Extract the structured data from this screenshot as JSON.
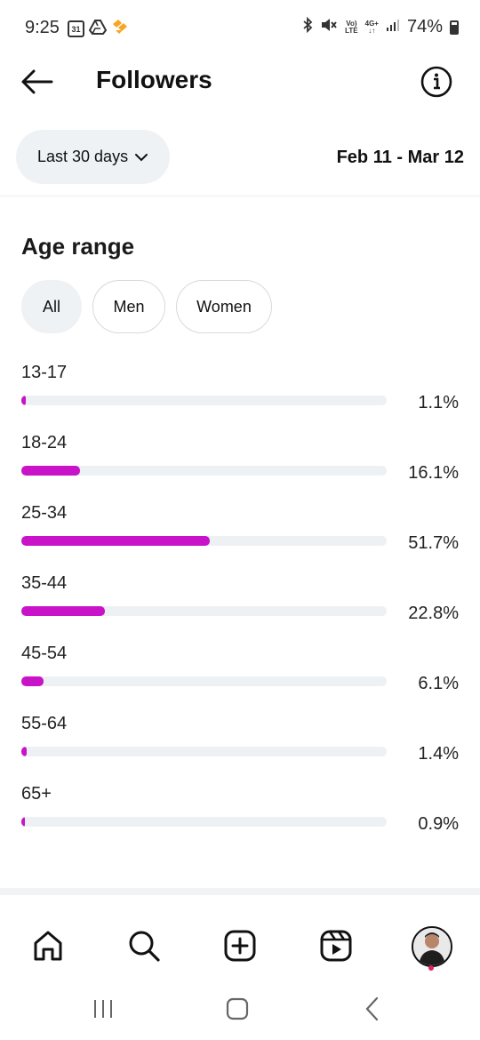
{
  "status_bar": {
    "time": "9:25",
    "calendar_day": "31",
    "net_top": "Vo)",
    "net_bottom": "LTE",
    "signal_top": "4G+",
    "signal_bottom": "↓↑",
    "battery": "74%"
  },
  "header": {
    "title": "Followers"
  },
  "range": {
    "selector_label": "Last 30 days",
    "dates": "Feb 11 - Mar 12"
  },
  "section": {
    "title": "Age range",
    "filters": [
      "All",
      "Men",
      "Women"
    ],
    "active_filter": "All"
  },
  "age_ranges": [
    {
      "label": "13-17",
      "percent": "1.1%",
      "value": 1.1
    },
    {
      "label": "18-24",
      "percent": "16.1%",
      "value": 16.1
    },
    {
      "label": "25-34",
      "percent": "51.7%",
      "value": 51.7
    },
    {
      "label": "35-44",
      "percent": "22.8%",
      "value": 22.8
    },
    {
      "label": "45-54",
      "percent": "6.1%",
      "value": 6.1
    },
    {
      "label": "55-64",
      "percent": "1.4%",
      "value": 1.4
    },
    {
      "label": "65+",
      "percent": "0.9%",
      "value": 0.9
    }
  ],
  "colors": {
    "bar_fill": "#c813c8",
    "bar_track": "#eef1f4",
    "pill_bg": "#eff2f5",
    "notification_dot": "#e0245e"
  },
  "icons": {
    "back": "arrow-left-icon",
    "info": "info-icon",
    "chevron": "chevron-down-icon",
    "home": "home-icon",
    "search": "search-icon",
    "create": "plus-square-icon",
    "reels": "reels-icon",
    "profile": "avatar"
  }
}
